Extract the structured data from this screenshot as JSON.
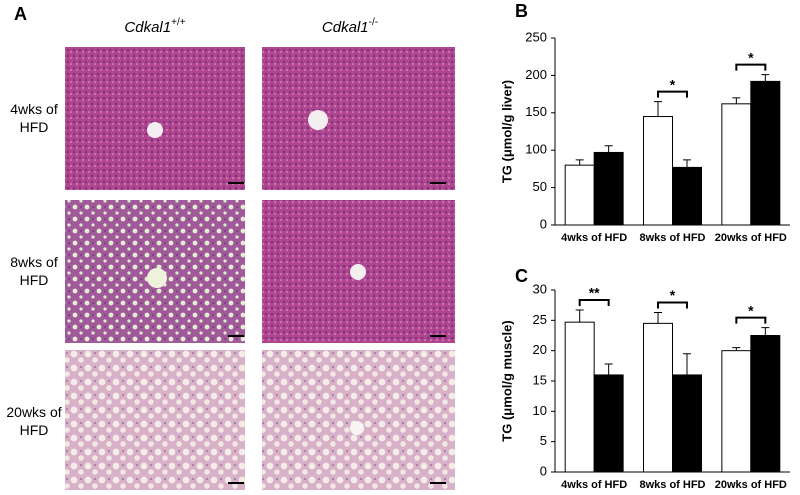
{
  "panel_a": {
    "label": "A",
    "columns": [
      {
        "name": "Cdkal1",
        "superscript": "+/+"
      },
      {
        "name": "Cdkal1",
        "superscript": "-/-"
      }
    ],
    "rows": [
      "4wks of HFD",
      "8wks of HFD",
      "20wks of HFD"
    ]
  },
  "chart_data": [
    {
      "type": "bar",
      "panel_label": "B",
      "y_label": "TG (μmol/g liver)",
      "categories": [
        "4wks of HFD",
        "8wks of HFD",
        "20wks of HFD"
      ],
      "series": [
        {
          "color": "#ffffff",
          "values": [
            80,
            145,
            162
          ],
          "error": [
            7,
            20,
            8
          ]
        },
        {
          "color": "#000000",
          "values": [
            97,
            77,
            192
          ],
          "error": [
            9,
            10,
            9
          ]
        }
      ],
      "significance": [
        null,
        "*",
        "*"
      ],
      "ylim": [
        0,
        250
      ],
      "yticks": [
        0,
        50,
        100,
        150,
        200,
        250
      ]
    },
    {
      "type": "bar",
      "panel_label": "C",
      "y_label": "TG (μmol/g muscle)",
      "categories": [
        "4wks of HFD",
        "8wks of HFD",
        "20wks of HFD"
      ],
      "series": [
        {
          "color": "#ffffff",
          "values": [
            24.7,
            24.5,
            20
          ],
          "error": [
            2,
            1.8,
            0.5
          ]
        },
        {
          "color": "#000000",
          "values": [
            16,
            16,
            22.5
          ],
          "error": [
            1.8,
            3.5,
            1.3
          ]
        }
      ],
      "significance": [
        "**",
        "*",
        "*"
      ],
      "ylim": [
        0,
        30
      ],
      "yticks": [
        0,
        5,
        10,
        15,
        20,
        25,
        30
      ]
    }
  ]
}
